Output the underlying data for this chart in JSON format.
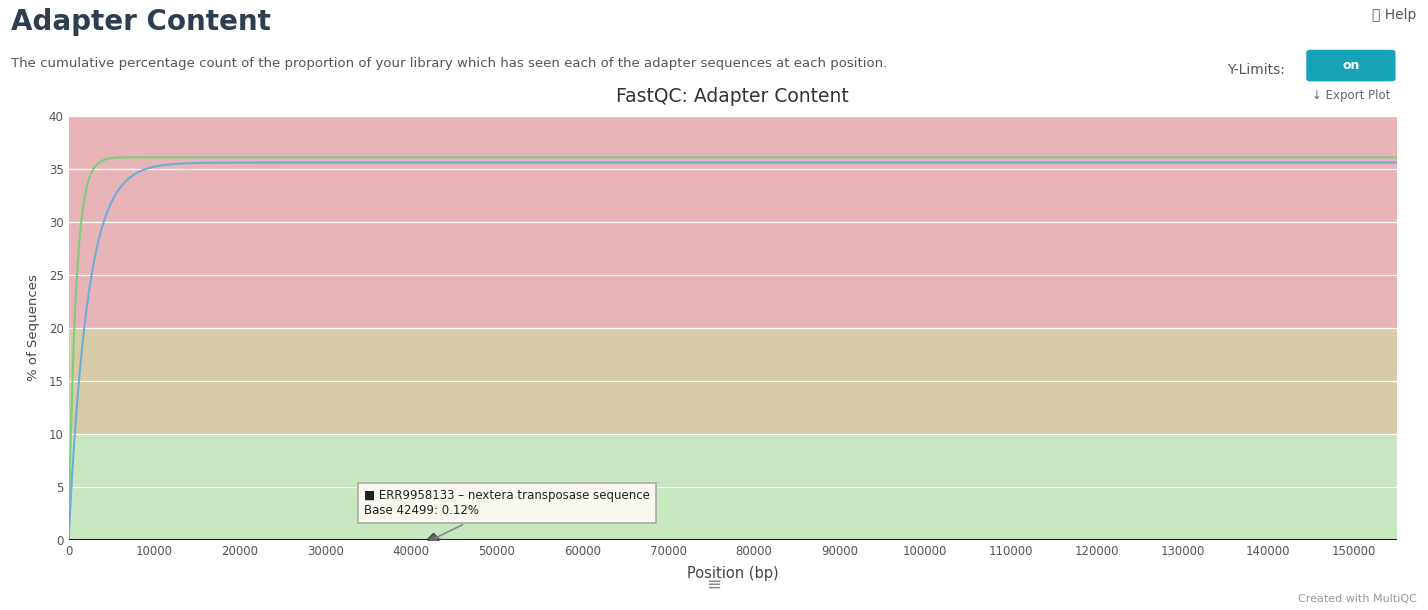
{
  "title": "FastQC: Adapter Content",
  "xlabel": "Position (bp)",
  "ylabel": "% of Sequences",
  "ylim": [
    0,
    40
  ],
  "xlim": [
    0,
    155000
  ],
  "xticks": [
    0,
    10000,
    20000,
    30000,
    40000,
    50000,
    60000,
    70000,
    80000,
    90000,
    100000,
    110000,
    120000,
    130000,
    140000,
    150000
  ],
  "yticks": [
    0,
    5,
    10,
    15,
    20,
    25,
    30,
    35,
    40
  ],
  "bg_red_ymin": 20,
  "bg_red_ymax": 40,
  "bg_red_color": "#e8b4b8",
  "bg_tan_ymin": 10,
  "bg_tan_ymax": 20,
  "bg_tan_color": "#d8cba7",
  "bg_green_ymin": 0,
  "bg_green_ymax": 10,
  "bg_green_color": "#c8e6c0",
  "line1_color": "#7dce7d",
  "line2_color": "#6baed6",
  "plot_bg": "#ffffff",
  "grid_color": "#ffffff",
  "tooltip_x": 42499,
  "tooltip_y": 0.05,
  "tooltip_label": "ERR9958133 – nextera transposase sequence",
  "tooltip_base": "Base 42499: 0.12%",
  "page_title": "Adapter Content",
  "page_subtitle": "The cumulative percentage count of the proportion of your library which has seen each of the adapter sequences at each position.",
  "footer": "Created with MultiQC",
  "export_label": "↓ Export Plot",
  "help_label": "❓ Help",
  "ylimits_label": "Y-Limits:",
  "fig_width": 14.28,
  "fig_height": 6.1,
  "line1_plateau": 36.1,
  "line1_rise": 0.0012,
  "line2_plateau": 35.6,
  "line2_rise": 0.00045
}
